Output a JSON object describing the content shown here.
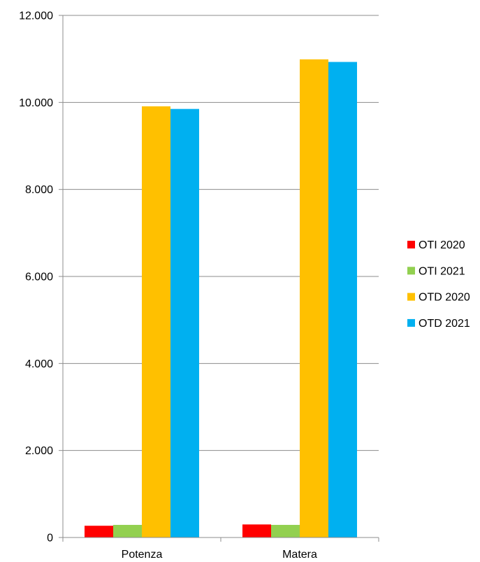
{
  "chart_data": {
    "type": "bar",
    "categories": [
      "Potenza",
      "Matera"
    ],
    "series": [
      {
        "name": "OTI 2020",
        "color": "#ff0000",
        "values": [
          270,
          300
        ]
      },
      {
        "name": "OTI 2021",
        "color": "#92d050",
        "values": [
          290,
          290
        ]
      },
      {
        "name": "OTD 2020",
        "color": "#ffc000",
        "values": [
          9910,
          10990
        ]
      },
      {
        "name": "OTD 2021",
        "color": "#00b0f0",
        "values": [
          9850,
          10930
        ]
      }
    ],
    "ylim": [
      0,
      12000
    ],
    "yticks": [
      0,
      2000,
      4000,
      6000,
      8000,
      10000,
      12000
    ],
    "ytick_labels": [
      "0",
      "2.000",
      "4.000",
      "6.000",
      "8.000",
      "10.000",
      "12.000"
    ],
    "grid": true,
    "legend_position": "right",
    "title": "",
    "xlabel": "",
    "ylabel": ""
  }
}
